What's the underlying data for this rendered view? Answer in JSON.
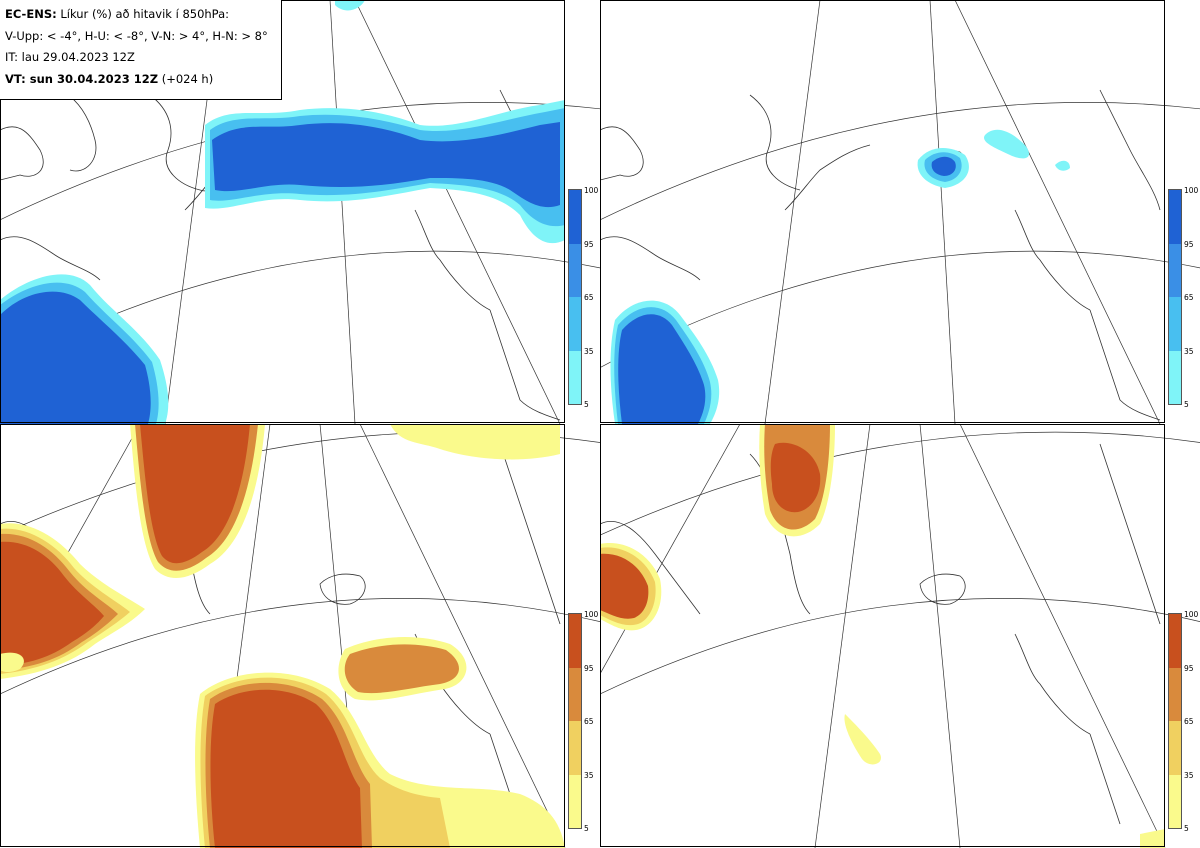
{
  "title": {
    "model": "EC-ENS:",
    "desc": "Líkur (%) að hitavik í 850hPa:",
    "thresholds": "V-Upp: < -4°, H-U: < -8°, V-N: > 4°, H-N: > 8°",
    "issue": "IT: lau 29.04.2023 12Z",
    "valid_bold": "VT: sun 30.04.2023 12Z",
    "valid_lead": "(+024 h)"
  },
  "panels": [
    {
      "name": "V-Upp",
      "scheme": "blue"
    },
    {
      "name": "H-U",
      "scheme": "blue"
    },
    {
      "name": "V-N",
      "scheme": "orange"
    },
    {
      "name": "H-N",
      "scheme": "orange"
    }
  ],
  "colorbar": {
    "ticks": [
      "100",
      "95",
      "65",
      "35",
      "5"
    ],
    "blue_colors": [
      "#1f62d4",
      "#3a8fe6",
      "#48bff0",
      "#7ff4f8"
    ],
    "orange_colors": [
      "#c8501e",
      "#d98a3c",
      "#f0d060",
      "#fafa8c"
    ]
  }
}
